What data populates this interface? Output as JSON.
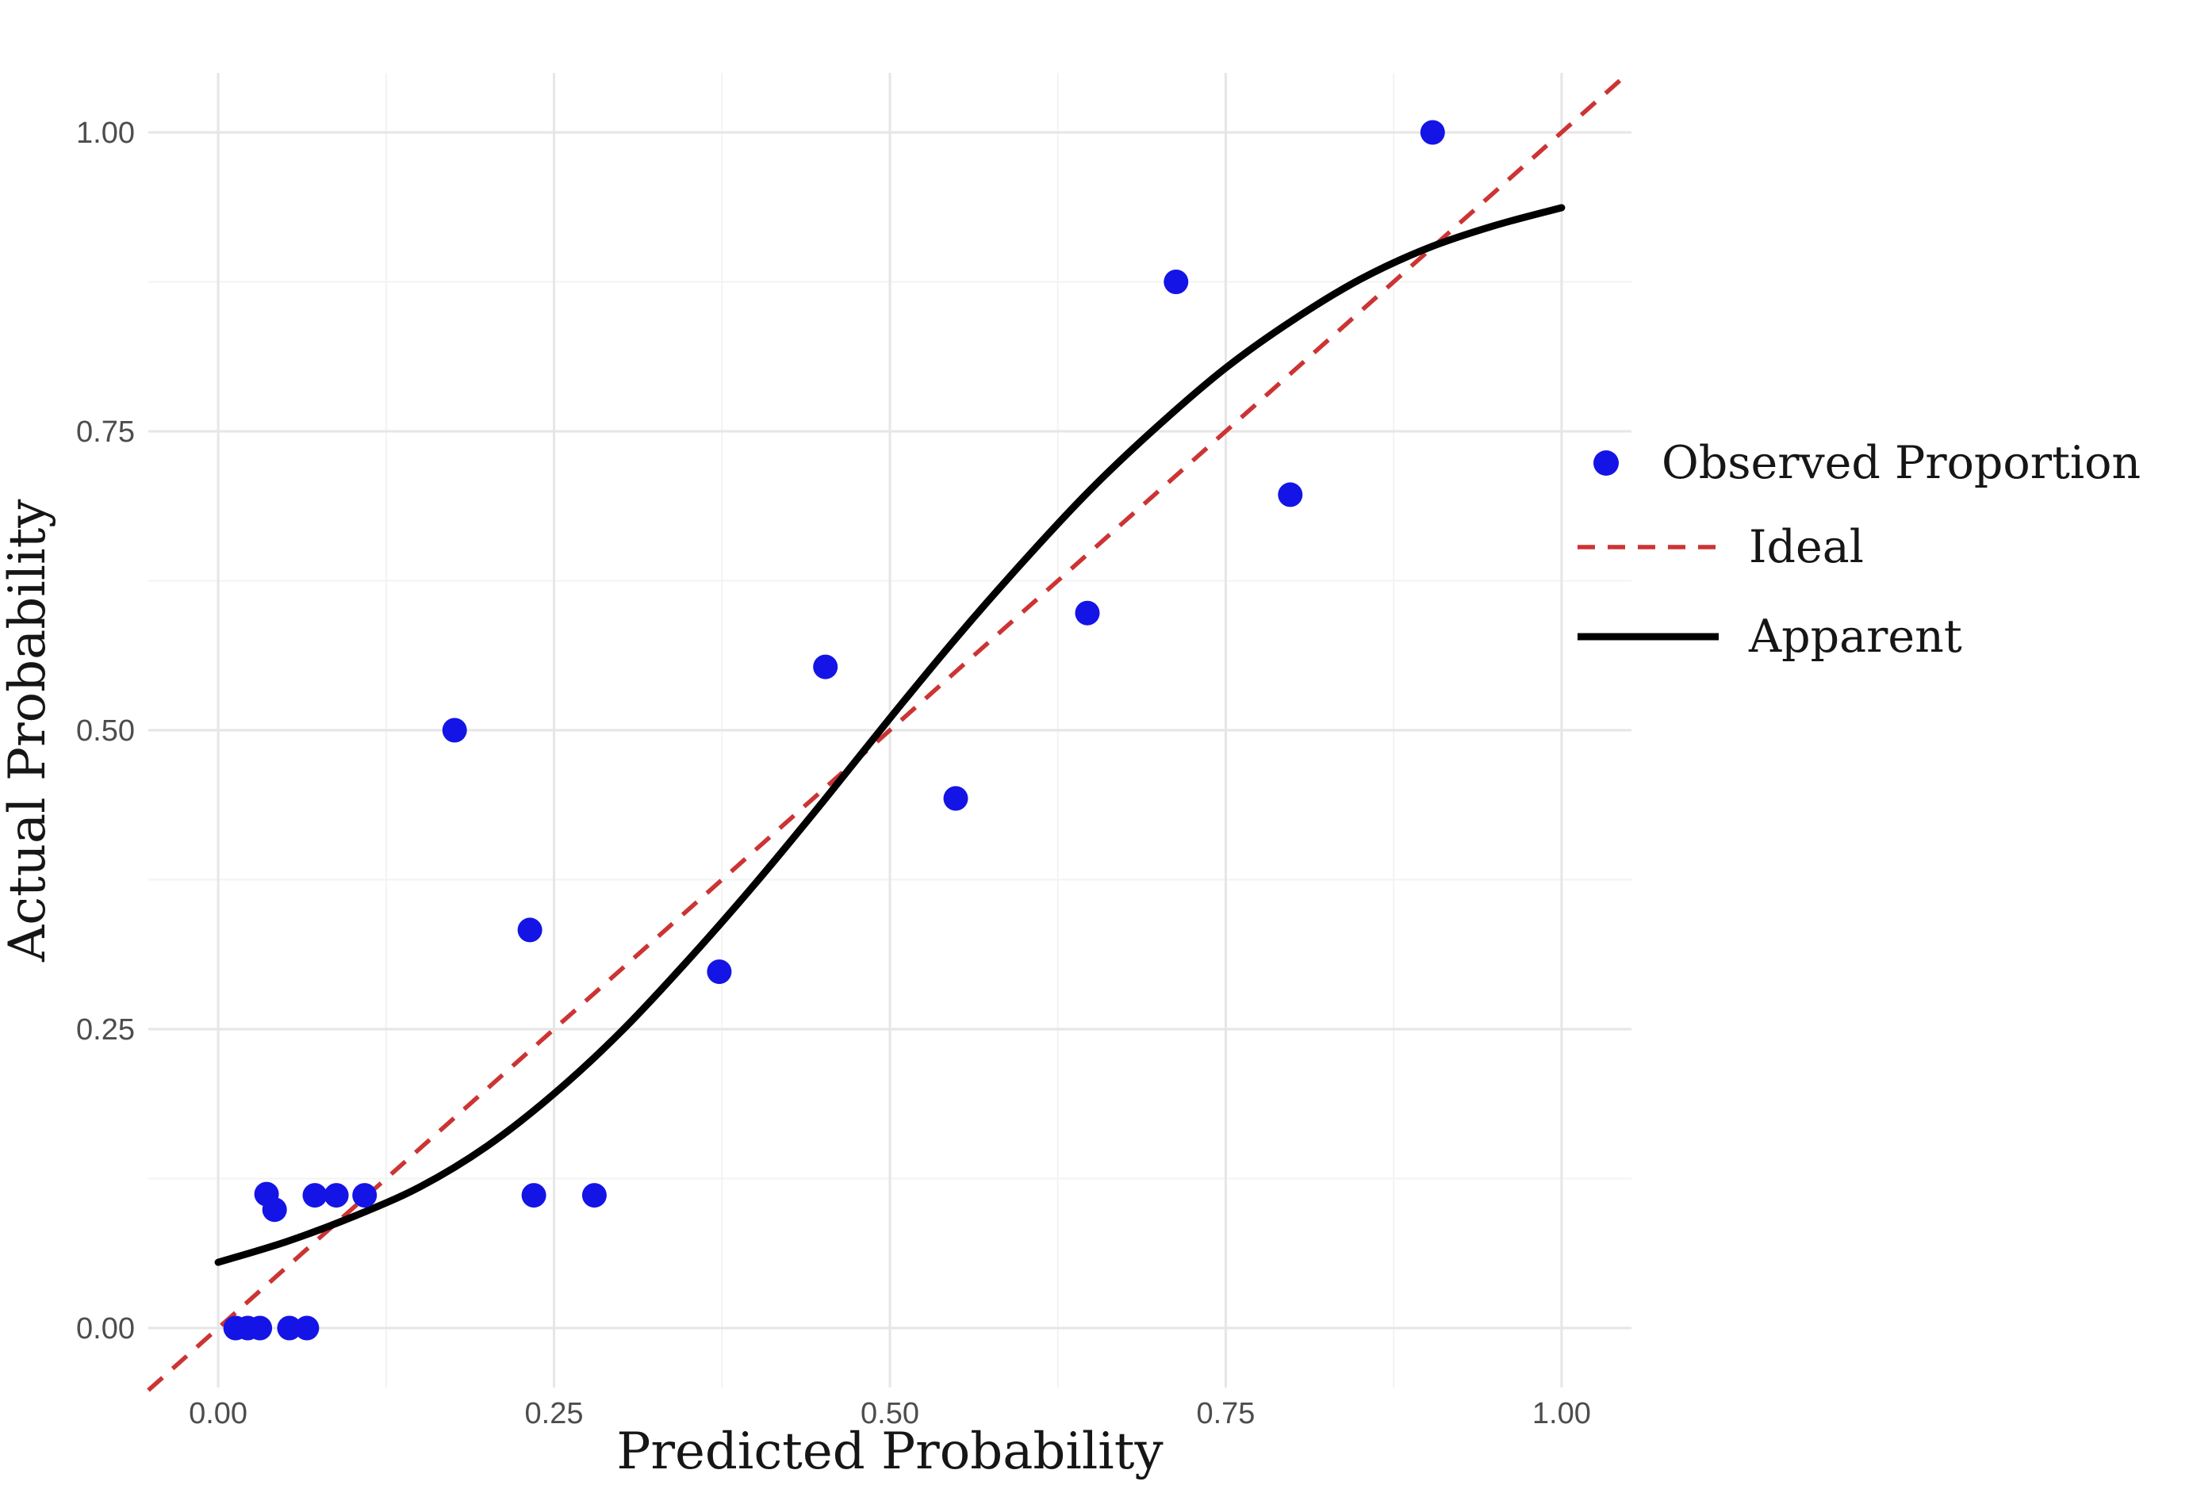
{
  "chart_data": {
    "type": "scatter",
    "title": "",
    "xlabel": "Predicted Probability",
    "ylabel": "Actual Probability",
    "xlim": [
      -0.052,
      1.052
    ],
    "ylim": [
      -0.0497,
      1.0497
    ],
    "grid": {
      "major_step": 0.25,
      "minor_step": 0.125,
      "shown": true
    },
    "x_ticks": {
      "values": [
        0.0,
        0.25,
        0.5,
        0.75,
        1.0
      ],
      "labels": [
        "0.00",
        "0.25",
        "0.50",
        "0.75",
        "1.00"
      ]
    },
    "y_ticks": {
      "values": [
        0.0,
        0.25,
        0.5,
        0.75,
        1.0
      ],
      "labels": [
        "0.00",
        "0.25",
        "0.50",
        "0.75",
        "1.00"
      ]
    },
    "legend_position": "right",
    "series": [
      {
        "name": "Observed Proportion",
        "type": "scatter",
        "color": "#1414e6",
        "marker": "circle",
        "points": [
          [
            0.013,
            0.0
          ],
          [
            0.022,
            0.0
          ],
          [
            0.031,
            0.0
          ],
          [
            0.053,
            0.0
          ],
          [
            0.066,
            0.0
          ],
          [
            0.036,
            0.112
          ],
          [
            0.042,
            0.099
          ],
          [
            0.072,
            0.111
          ],
          [
            0.088,
            0.111
          ],
          [
            0.109,
            0.111
          ],
          [
            0.235,
            0.111
          ],
          [
            0.28,
            0.111
          ],
          [
            0.176,
            0.5
          ],
          [
            0.232,
            0.333
          ],
          [
            0.373,
            0.298
          ],
          [
            0.452,
            0.553
          ],
          [
            0.549,
            0.443
          ],
          [
            0.647,
            0.598
          ],
          [
            0.713,
            0.875
          ],
          [
            0.798,
            0.697
          ],
          [
            0.904,
            1.0
          ]
        ]
      },
      {
        "name": "Ideal",
        "type": "line",
        "style": "dashed",
        "color": "#cc3434",
        "points": [
          [
            -0.052,
            -0.052
          ],
          [
            1.047,
            1.047
          ]
        ]
      },
      {
        "name": "Apparent",
        "type": "line",
        "style": "solid",
        "color": "#000000",
        "points": [
          [
            0.0,
            0.055
          ],
          [
            0.05,
            0.072
          ],
          [
            0.1,
            0.093
          ],
          [
            0.15,
            0.118
          ],
          [
            0.2,
            0.152
          ],
          [
            0.25,
            0.196
          ],
          [
            0.3,
            0.248
          ],
          [
            0.35,
            0.308
          ],
          [
            0.4,
            0.372
          ],
          [
            0.45,
            0.44
          ],
          [
            0.5,
            0.51
          ],
          [
            0.55,
            0.578
          ],
          [
            0.6,
            0.642
          ],
          [
            0.65,
            0.702
          ],
          [
            0.7,
            0.755
          ],
          [
            0.75,
            0.803
          ],
          [
            0.8,
            0.843
          ],
          [
            0.85,
            0.877
          ],
          [
            0.9,
            0.903
          ],
          [
            0.95,
            0.922
          ],
          [
            1.0,
            0.937
          ]
        ]
      }
    ],
    "colors": {
      "point": "#1414e6",
      "ideal": "#cc3434",
      "apparent": "#000000",
      "grid_major": "#e6e6e6",
      "grid_minor": "#f3f3f3",
      "tick_text": "#4d4d4d",
      "background": "#ffffff"
    }
  }
}
